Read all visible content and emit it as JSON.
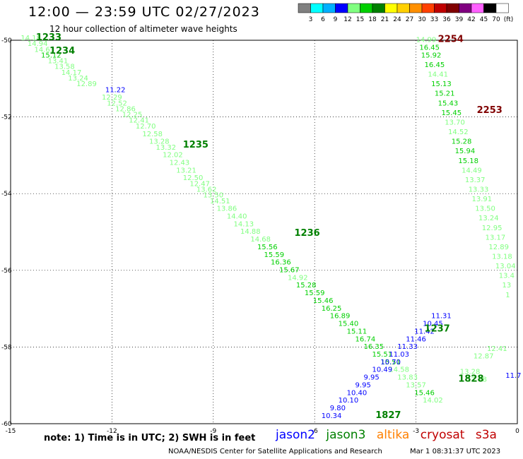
{
  "header": {
    "title": "12:00 — 23:59 UTC 02/27/2023",
    "subtitle": "12 hour collection of altimeter wave heights"
  },
  "colorbar": {
    "labels": [
      "3",
      "6",
      "9",
      "12",
      "15",
      "18",
      "21",
      "24",
      "27",
      "30",
      "33",
      "36",
      "39",
      "42",
      "45",
      "70",
      "(ft)"
    ],
    "colors": [
      "#808080",
      "#00ffff",
      "#00b0ff",
      "#0000ff",
      "#80ff80",
      "#00d000",
      "#008000",
      "#ffff00",
      "#ffd000",
      "#ff9000",
      "#ff4000",
      "#c00000",
      "#800000",
      "#800080",
      "#ff60ff",
      "#000000",
      "#ffffff"
    ]
  },
  "footer": {
    "note": "note: 1) Time is in UTC; 2) SWH is in feet",
    "satellites": [
      {
        "name": "jason2",
        "color": "#0000ff"
      },
      {
        "name": "jason3",
        "color": "#008000"
      },
      {
        "name": "altika",
        "color": "#ff8000"
      },
      {
        "name": "cryosat",
        "color": "#c00000"
      },
      {
        "name": "s3a",
        "color": "#c00000"
      }
    ],
    "credit": "NOAA/NESDIS Center for Satellite Applications and Research",
    "timestamp": "Mar 1 08:31:37 UTC 2023"
  },
  "chart_data": {
    "type": "scatter",
    "xlim": [
      -15,
      0
    ],
    "ylim": [
      -60,
      -50
    ],
    "xticks": [
      "-15",
      "-12",
      "-9",
      "-6",
      "-3",
      "0"
    ],
    "yticks": [
      "-50",
      "-52",
      "-54",
      "-56",
      "-58",
      "-60"
    ],
    "grid": true,
    "time_labels": [
      {
        "text": "1233",
        "x": -14.25,
        "y": -50.0,
        "color": "#008000"
      },
      {
        "text": "1234",
        "x": -13.85,
        "y": -50.35,
        "color": "#008000"
      },
      {
        "text": "1235",
        "x": -9.9,
        "y": -52.8,
        "color": "#008000"
      },
      {
        "text": "1236",
        "x": -6.6,
        "y": -55.1,
        "color": "#008000"
      },
      {
        "text": "1237",
        "x": -2.75,
        "y": -57.6,
        "color": "#008000"
      },
      {
        "text": "1827",
        "x": -4.2,
        "y": -59.85,
        "color": "#008000"
      },
      {
        "text": "1828",
        "x": -1.75,
        "y": -58.9,
        "color": "#008000"
      },
      {
        "text": "2254",
        "x": -2.35,
        "y": -50.05,
        "color": "#800000"
      },
      {
        "text": "2253",
        "x": -1.2,
        "y": -51.9,
        "color": "#800000"
      }
    ],
    "series": [
      {
        "name": "jason3",
        "points": [
          {
            "x": -14.7,
            "y": -50.0,
            "v": "14.18",
            "c": "#80ff80"
          },
          {
            "x": -14.5,
            "y": -50.15,
            "v": "14.94",
            "c": "#80ff80"
          },
          {
            "x": -14.3,
            "y": -50.3,
            "v": "14.63",
            "c": "#80ff80"
          },
          {
            "x": -14.1,
            "y": -50.45,
            "v": "15.12",
            "c": "#00d000"
          },
          {
            "x": -13.9,
            "y": -50.6,
            "v": "13.41",
            "c": "#80ff80"
          },
          {
            "x": -13.7,
            "y": -50.75,
            "v": "13.58",
            "c": "#80ff80"
          },
          {
            "x": -13.5,
            "y": -50.9,
            "v": "14.17",
            "c": "#80ff80"
          },
          {
            "x": -13.3,
            "y": -51.05,
            "v": "13.24",
            "c": "#80ff80"
          },
          {
            "x": -13.05,
            "y": -51.2,
            "v": "12.89",
            "c": "#80ff80"
          },
          {
            "x": -12.3,
            "y": -51.55,
            "v": "12.29",
            "c": "#80ff80"
          },
          {
            "x": -12.15,
            "y": -51.7,
            "v": "12.52",
            "c": "#80ff80"
          },
          {
            "x": -11.9,
            "y": -51.85,
            "v": "12.86",
            "c": "#80ff80"
          },
          {
            "x": -11.7,
            "y": -52.0,
            "v": "12.25",
            "c": "#80ff80"
          },
          {
            "x": -11.5,
            "y": -52.15,
            "v": "12.41",
            "c": "#80ff80"
          },
          {
            "x": -11.3,
            "y": -52.3,
            "v": "12.70",
            "c": "#80ff80"
          },
          {
            "x": -11.1,
            "y": -52.5,
            "v": "12.58",
            "c": "#80ff80"
          },
          {
            "x": -10.9,
            "y": -52.7,
            "v": "13.28",
            "c": "#80ff80"
          },
          {
            "x": -10.7,
            "y": -52.85,
            "v": "13.32",
            "c": "#80ff80"
          },
          {
            "x": -10.5,
            "y": -53.05,
            "v": "12.02",
            "c": "#80ff80"
          },
          {
            "x": -10.3,
            "y": -53.25,
            "v": "12.43",
            "c": "#80ff80"
          },
          {
            "x": -10.1,
            "y": -53.45,
            "v": "13.21",
            "c": "#80ff80"
          },
          {
            "x": -9.9,
            "y": -53.65,
            "v": "12.50",
            "c": "#80ff80"
          },
          {
            "x": -9.7,
            "y": -53.8,
            "v": "12.47",
            "c": "#80ff80"
          },
          {
            "x": -9.5,
            "y": -53.95,
            "v": "13.62",
            "c": "#80ff80"
          },
          {
            "x": -9.3,
            "y": -54.1,
            "v": "13.50",
            "c": "#80ff80"
          },
          {
            "x": -9.1,
            "y": -54.25,
            "v": "14.51",
            "c": "#80ff80"
          },
          {
            "x": -8.9,
            "y": -54.45,
            "v": "13.86",
            "c": "#80ff80"
          },
          {
            "x": -8.6,
            "y": -54.65,
            "v": "14.40",
            "c": "#80ff80"
          },
          {
            "x": -8.4,
            "y": -54.85,
            "v": "14.13",
            "c": "#80ff80"
          },
          {
            "x": -8.2,
            "y": -55.05,
            "v": "14.88",
            "c": "#80ff80"
          },
          {
            "x": -7.9,
            "y": -55.25,
            "v": "14.68",
            "c": "#80ff80"
          },
          {
            "x": -7.7,
            "y": -55.45,
            "v": "15.56",
            "c": "#00d000"
          },
          {
            "x": -7.5,
            "y": -55.65,
            "v": "15.59",
            "c": "#00d000"
          },
          {
            "x": -7.3,
            "y": -55.85,
            "v": "16.36",
            "c": "#00d000"
          },
          {
            "x": -7.05,
            "y": -56.05,
            "v": "15.67",
            "c": "#00d000"
          },
          {
            "x": -6.8,
            "y": -56.25,
            "v": "14.92",
            "c": "#80ff80"
          },
          {
            "x": -6.55,
            "y": -56.45,
            "v": "15.28",
            "c": "#00d000"
          },
          {
            "x": -6.3,
            "y": -56.65,
            "v": "15.59",
            "c": "#00d000"
          },
          {
            "x": -6.05,
            "y": -56.85,
            "v": "15.46",
            "c": "#00d000"
          },
          {
            "x": -5.8,
            "y": -57.05,
            "v": "16.25",
            "c": "#00d000"
          },
          {
            "x": -5.55,
            "y": -57.25,
            "v": "16.89",
            "c": "#00d000"
          },
          {
            "x": -5.3,
            "y": -57.45,
            "v": "15.40",
            "c": "#00d000"
          },
          {
            "x": -5.05,
            "y": -57.65,
            "v": "15.11",
            "c": "#00d000"
          },
          {
            "x": -4.8,
            "y": -57.85,
            "v": "16.74",
            "c": "#00d000"
          },
          {
            "x": -4.55,
            "y": -58.05,
            "v": "16.35",
            "c": "#00d000"
          },
          {
            "x": -4.3,
            "y": -58.25,
            "v": "15.51",
            "c": "#00d000"
          },
          {
            "x": -4.05,
            "y": -58.45,
            "v": "15.51",
            "c": "#00d000"
          },
          {
            "x": -3.8,
            "y": -58.65,
            "v": "14.58",
            "c": "#80ff80"
          },
          {
            "x": -3.55,
            "y": -58.85,
            "v": "13.83",
            "c": "#80ff80"
          },
          {
            "x": -3.3,
            "y": -59.05,
            "v": "13.57",
            "c": "#80ff80"
          },
          {
            "x": -3.05,
            "y": -59.25,
            "v": "15.46",
            "c": "#00d000"
          },
          {
            "x": -2.8,
            "y": -59.45,
            "v": "14.02",
            "c": "#80ff80"
          },
          {
            "x": -1.3,
            "y": -58.3,
            "v": "12.87",
            "c": "#80ff80"
          },
          {
            "x": -0.9,
            "y": -58.1,
            "v": "12.41",
            "c": "#80ff80"
          },
          {
            "x": -1.7,
            "y": -58.7,
            "v": "13.28",
            "c": "#80ff80"
          },
          {
            "x": -1.5,
            "y": -58.9,
            "v": "12.78",
            "c": "#80ff80"
          }
        ]
      },
      {
        "name": "jason2",
        "points": [
          {
            "x": -12.2,
            "y": -51.35,
            "v": "11.22",
            "c": "#0000ff"
          },
          {
            "x": -5.8,
            "y": -59.85,
            "v": "10.34",
            "c": "#0000ff"
          },
          {
            "x": -5.55,
            "y": -59.65,
            "v": "9.80",
            "c": "#0000ff"
          },
          {
            "x": -5.3,
            "y": -59.45,
            "v": "10.10",
            "c": "#0000ff"
          },
          {
            "x": -5.05,
            "y": -59.25,
            "v": "10.40",
            "c": "#0000ff"
          },
          {
            "x": -4.8,
            "y": -59.05,
            "v": "9.95",
            "c": "#0000ff"
          },
          {
            "x": -4.55,
            "y": -58.85,
            "v": "9.95",
            "c": "#0000ff"
          },
          {
            "x": -4.3,
            "y": -58.65,
            "v": "10.49",
            "c": "#0000ff"
          },
          {
            "x": -4.05,
            "y": -58.45,
            "v": "10.70",
            "c": "#0000ff"
          },
          {
            "x": -3.8,
            "y": -58.25,
            "v": "11.03",
            "c": "#0000ff"
          },
          {
            "x": -3.55,
            "y": -58.05,
            "v": "11.33",
            "c": "#0000ff"
          },
          {
            "x": -3.3,
            "y": -57.85,
            "v": "11.46",
            "c": "#0000ff"
          },
          {
            "x": -3.05,
            "y": -57.65,
            "v": "11.42",
            "c": "#0000ff"
          },
          {
            "x": -2.8,
            "y": -57.45,
            "v": "10.45",
            "c": "#0000ff"
          },
          {
            "x": -2.55,
            "y": -57.25,
            "v": "11.31",
            "c": "#0000ff"
          },
          {
            "x": -0.35,
            "y": -58.8,
            "v": "11.7",
            "c": "#0000ff"
          }
        ]
      },
      {
        "name": "cryosat",
        "points": [
          {
            "x": -3.0,
            "y": -50.05,
            "v": "14.99",
            "c": "#80ff80"
          },
          {
            "x": -2.9,
            "y": -50.25,
            "v": "16.45",
            "c": "#00d000"
          },
          {
            "x": -2.85,
            "y": -50.45,
            "v": "15.92",
            "c": "#00d000"
          },
          {
            "x": -2.75,
            "y": -50.7,
            "v": "16.45",
            "c": "#00d000"
          },
          {
            "x": -2.65,
            "y": -50.95,
            "v": "14.41",
            "c": "#80ff80"
          },
          {
            "x": -2.55,
            "y": -51.2,
            "v": "15.13",
            "c": "#00d000"
          },
          {
            "x": -2.45,
            "y": -51.45,
            "v": "15.21",
            "c": "#00d000"
          },
          {
            "x": -2.35,
            "y": -51.7,
            "v": "15.43",
            "c": "#00d000"
          },
          {
            "x": -2.25,
            "y": -51.95,
            "v": "15.45",
            "c": "#00d000"
          },
          {
            "x": -2.15,
            "y": -52.2,
            "v": "13.70",
            "c": "#80ff80"
          },
          {
            "x": -2.05,
            "y": -52.45,
            "v": "14.52",
            "c": "#80ff80"
          },
          {
            "x": -1.95,
            "y": -52.7,
            "v": "15.28",
            "c": "#00d000"
          },
          {
            "x": -1.85,
            "y": -52.95,
            "v": "15.94",
            "c": "#00d000"
          },
          {
            "x": -1.75,
            "y": -53.2,
            "v": "15.18",
            "c": "#00d000"
          },
          {
            "x": -1.65,
            "y": -53.45,
            "v": "14.49",
            "c": "#80ff80"
          },
          {
            "x": -1.55,
            "y": -53.7,
            "v": "13.37",
            "c": "#80ff80"
          },
          {
            "x": -1.45,
            "y": -53.95,
            "v": "13.33",
            "c": "#80ff80"
          },
          {
            "x": -1.35,
            "y": -54.2,
            "v": "13.91",
            "c": "#80ff80"
          },
          {
            "x": -1.25,
            "y": -54.45,
            "v": "13.50",
            "c": "#80ff80"
          },
          {
            "x": -1.15,
            "y": -54.7,
            "v": "13.24",
            "c": "#80ff80"
          },
          {
            "x": -1.05,
            "y": -54.95,
            "v": "12.95",
            "c": "#80ff80"
          },
          {
            "x": -0.95,
            "y": -55.2,
            "v": "13.17",
            "c": "#80ff80"
          },
          {
            "x": -0.85,
            "y": -55.45,
            "v": "12.89",
            "c": "#80ff80"
          },
          {
            "x": -0.75,
            "y": -55.7,
            "v": "13.18",
            "c": "#80ff80"
          },
          {
            "x": -0.65,
            "y": -55.95,
            "v": "13.04",
            "c": "#80ff80"
          },
          {
            "x": -0.55,
            "y": -56.2,
            "v": "13.4",
            "c": "#80ff80"
          },
          {
            "x": -0.45,
            "y": -56.45,
            "v": "13",
            "c": "#80ff80"
          },
          {
            "x": -0.35,
            "y": -56.7,
            "v": "1",
            "c": "#80ff80"
          }
        ]
      }
    ]
  }
}
